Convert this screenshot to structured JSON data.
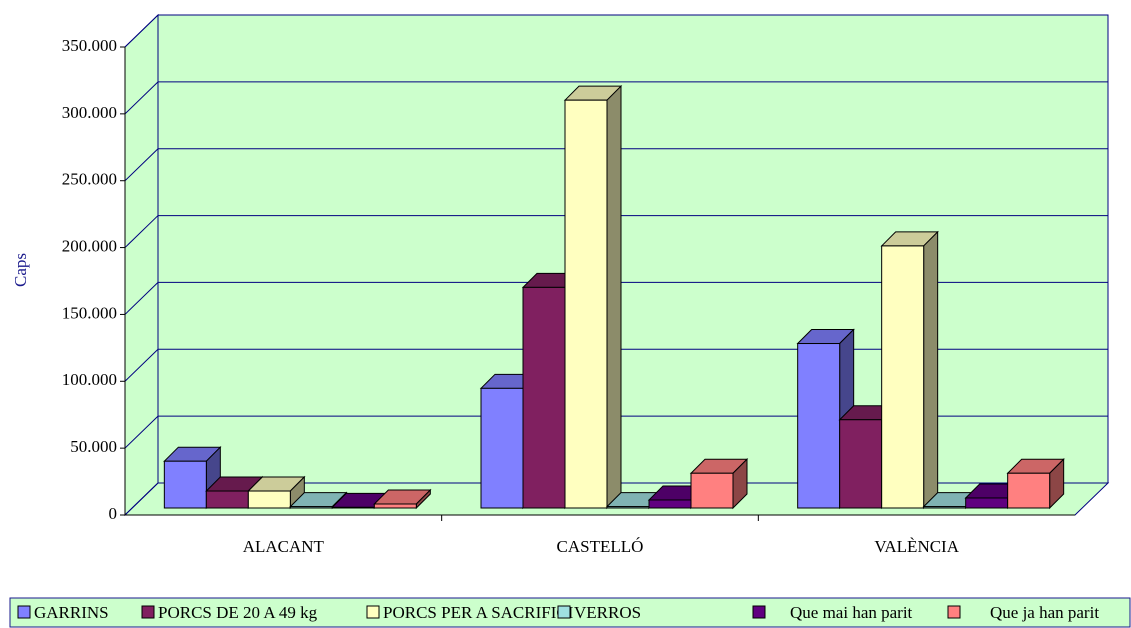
{
  "chart_data": {
    "type": "bar3d",
    "y_label": "Caps",
    "categories": [
      "ALACANT",
      "CASTELLÓ",
      "VALÈNCIA"
    ],
    "series": [
      {
        "name": "GARRINS",
        "color": "#8080ff",
        "values": [
          35000,
          89500,
          123000
        ]
      },
      {
        "name": "PORCS DE 20 A 49 kg",
        "color": "#802060",
        "values": [
          12700,
          165000,
          66000
        ]
      },
      {
        "name": "PORCS PER A SACRIFICI",
        "color": "#ffffc0",
        "values": [
          12700,
          305000,
          196000
        ]
      },
      {
        "name": "VERROS",
        "color": "#a0e0e0",
        "values": [
          1000,
          1000,
          1000
        ]
      },
      {
        "name": "Que mai han parit",
        "color": "#600080",
        "values": [
          500,
          6000,
          7500
        ]
      },
      {
        "name": "Que ja han parit",
        "color": "#ff8080",
        "values": [
          3000,
          26000,
          26000
        ]
      }
    ],
    "ylim": [
      0,
      350000
    ],
    "yticks": [
      0,
      {
        "value": 50000,
        "label": "50.000"
      },
      {
        "value": 100000,
        "label": "100.000"
      },
      {
        "value": 150000,
        "label": "150.000"
      },
      {
        "value": 200000,
        "label": "200.000"
      },
      {
        "value": 250000,
        "label": "250.000"
      },
      {
        "value": 300000,
        "label": "300.000"
      },
      {
        "value": 350000,
        "label": "350.000"
      }
    ],
    "grid": true,
    "legend": "bottom"
  }
}
